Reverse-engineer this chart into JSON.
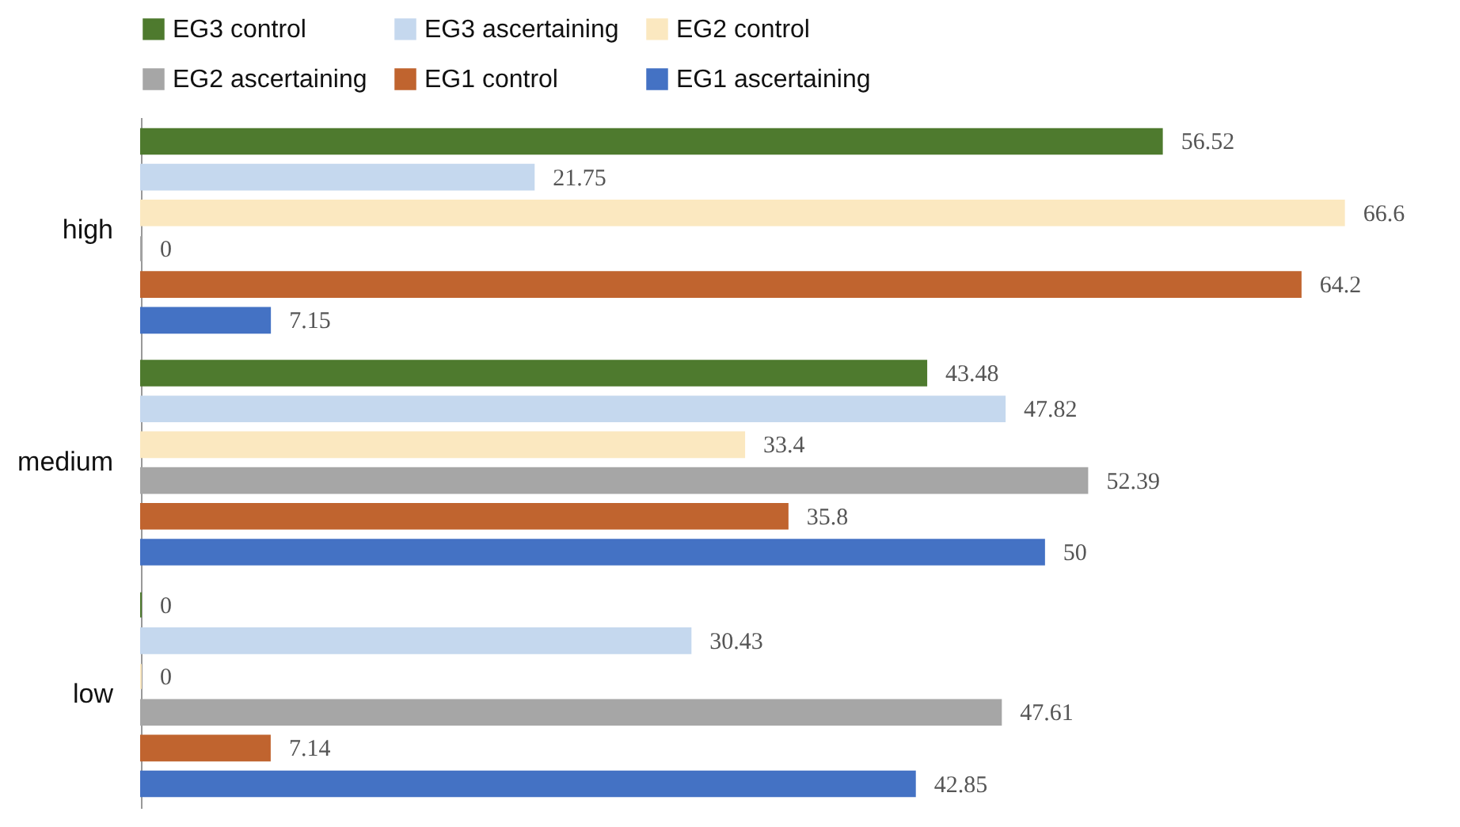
{
  "chart_data": {
    "type": "bar",
    "orientation": "horizontal",
    "categories": [
      "high",
      "medium",
      "low"
    ],
    "series": [
      {
        "name": "EG3 control",
        "color": "#4e7a2e",
        "values": [
          56.52,
          43.48,
          0
        ],
        "value_labels": [
          "56.52",
          "43.48",
          "0"
        ]
      },
      {
        "name": "EG3 ascertaining",
        "color": "#c5d8ee",
        "values": [
          21.75,
          47.82,
          30.43
        ],
        "value_labels": [
          "21.75",
          "47.82",
          "30.43"
        ]
      },
      {
        "name": "EG2 control",
        "color": "#fbe8c0",
        "values": [
          66.6,
          33.4,
          0
        ],
        "value_labels": [
          "66.6",
          "33.4",
          "0"
        ]
      },
      {
        "name": "EG2 ascertaining",
        "color": "#a6a6a6",
        "values": [
          0,
          52.39,
          47.61
        ],
        "value_labels": [
          "0",
          "52.39",
          "47.61"
        ]
      },
      {
        "name": "EG1 control",
        "color": "#c0642f",
        "values": [
          64.2,
          35.8,
          7.14
        ],
        "value_labels": [
          "64.2",
          "35.8",
          "7.14"
        ]
      },
      {
        "name": "EG1 ascertaining",
        "color": "#4472c4",
        "values": [
          7.15,
          50,
          42.85
        ],
        "value_labels": [
          "7.15",
          "50",
          "42.85"
        ]
      }
    ],
    "legend": "top",
    "grid": false
  }
}
